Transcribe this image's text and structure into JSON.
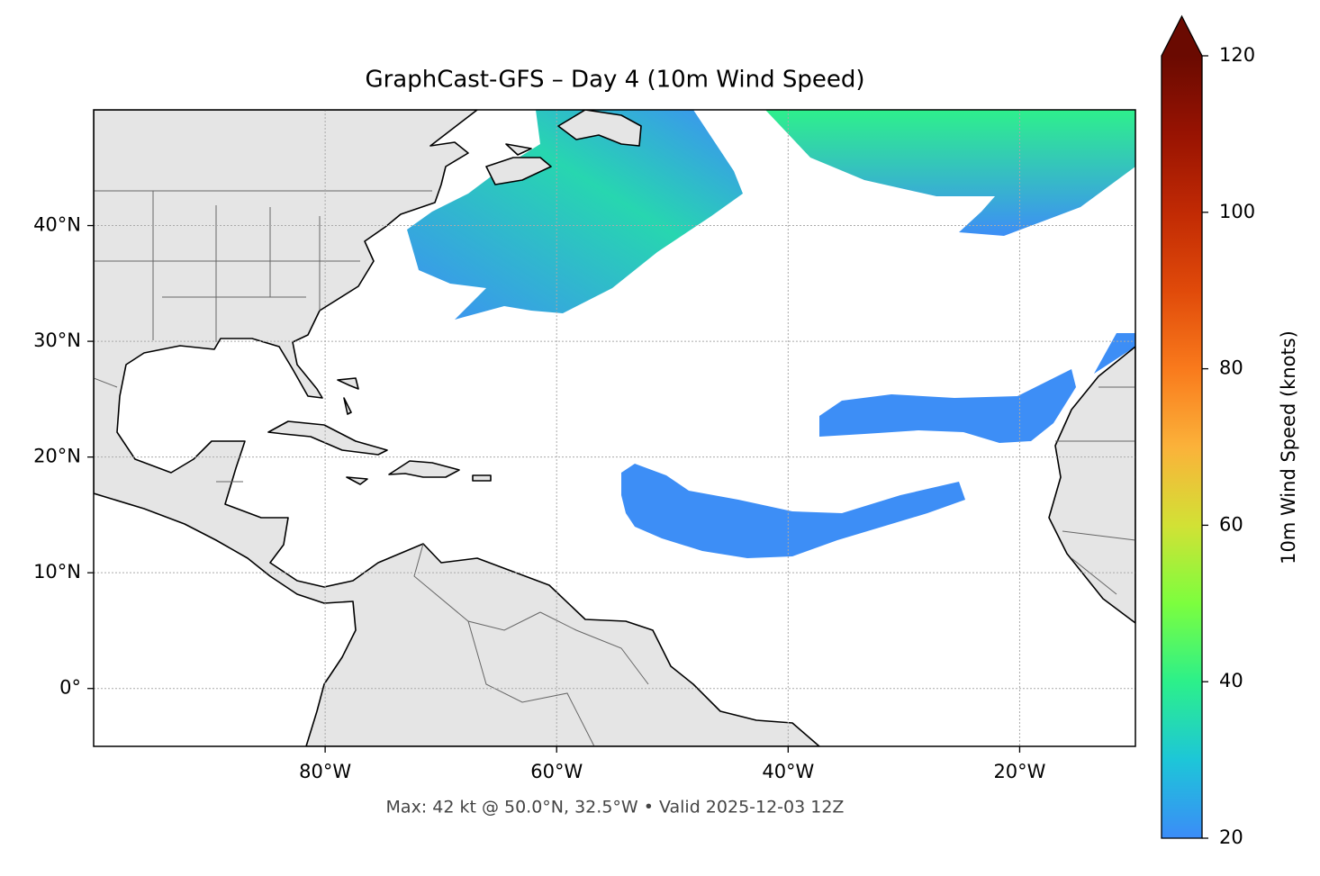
{
  "title": "GraphCast-GFS – Day 4 (10m Wind Speed)",
  "footer": "Max: 42 kt @ 50.0°N, 32.5°W • Valid 2025-12-03 12Z",
  "map": {
    "lonlim": [
      -100,
      -10
    ],
    "latlim": [
      -5,
      50
    ],
    "xticks": [
      {
        "value": -80,
        "label": "80°W"
      },
      {
        "value": -60,
        "label": "60°W"
      },
      {
        "value": -40,
        "label": "40°W"
      },
      {
        "value": -20,
        "label": "20°W"
      }
    ],
    "yticks": [
      {
        "value": 0,
        "label": "0°"
      },
      {
        "value": 10,
        "label": "10°N"
      },
      {
        "value": 20,
        "label": "20°N"
      },
      {
        "value": 30,
        "label": "30°N"
      },
      {
        "value": 40,
        "label": "40°N"
      }
    ],
    "grid": true
  },
  "colorbar": {
    "label": "10m Wind Speed (knots)",
    "lim": [
      20,
      120
    ],
    "ticks": [
      20,
      40,
      60,
      80,
      100,
      120
    ],
    "colors": [
      "#3b8cf8",
      "#1dc6d8",
      "#2cf08a",
      "#7cfe3e",
      "#d2e135",
      "#fbb23a",
      "#f97a1c",
      "#e04a0a",
      "#c12a04",
      "#981302",
      "#6a0a01"
    ],
    "extend": "max"
  }
}
